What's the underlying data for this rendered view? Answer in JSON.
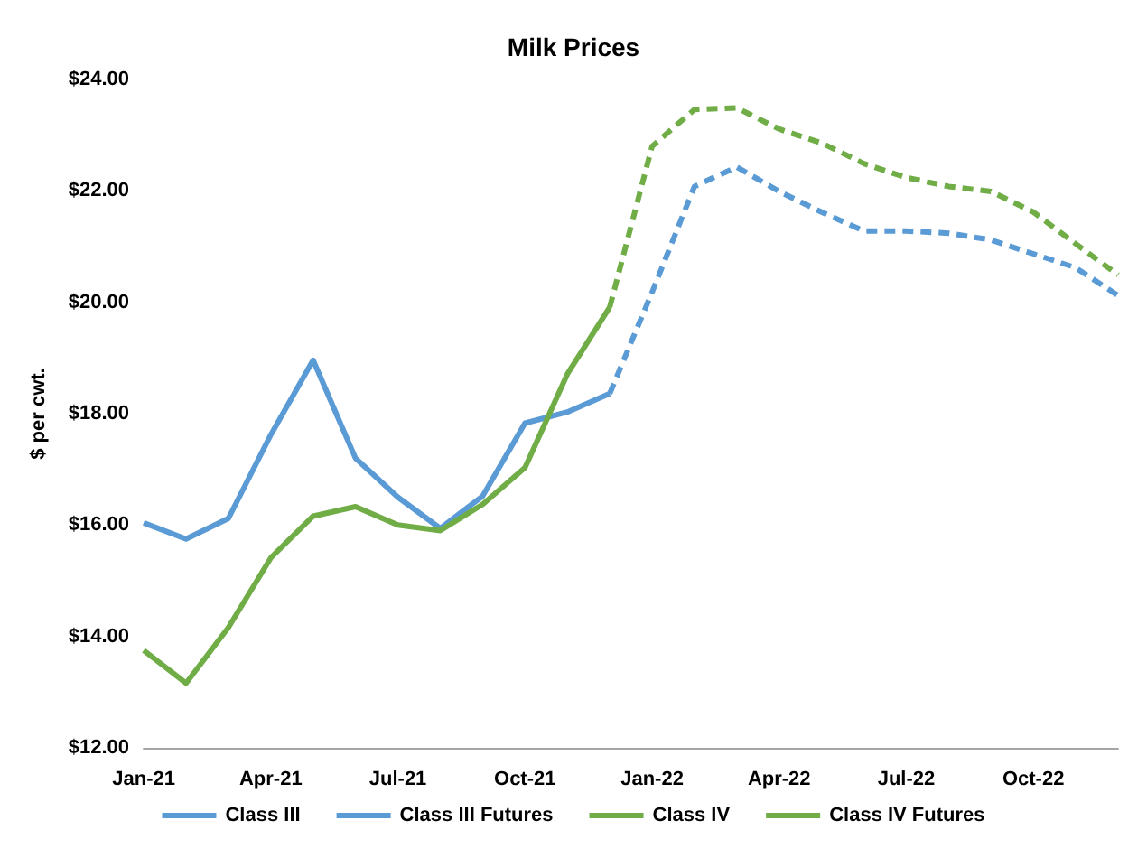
{
  "chart_data": {
    "type": "line",
    "title": "Milk Prices",
    "ylabel": "$ per cwt.",
    "categories": [
      "Jan-21",
      null,
      null,
      "Apr-21",
      null,
      null,
      "Jul-21",
      null,
      null,
      "Oct-21",
      null,
      null,
      "Jan-22",
      null,
      null,
      "Apr-22",
      null,
      null,
      "Jul-22",
      null,
      null,
      "Oct-22",
      null,
      null
    ],
    "series": [
      {
        "name": "Class III",
        "color": "#5b9bd5",
        "line_style": "solid",
        "values": [
          16.04,
          15.75,
          16.12,
          17.62,
          18.96,
          17.2,
          16.5,
          15.94,
          16.52,
          17.83,
          18.03,
          18.36,
          null,
          null,
          null,
          null,
          null,
          null,
          null,
          null,
          null,
          null,
          null,
          null
        ]
      },
      {
        "name": "Class III Futures",
        "color": "#5b9bd5",
        "line_style": "dashed",
        "values": [
          null,
          null,
          null,
          null,
          null,
          null,
          null,
          null,
          null,
          null,
          null,
          18.36,
          20.18,
          22.08,
          22.43,
          21.99,
          21.62,
          21.28,
          21.28,
          21.24,
          21.12,
          20.87,
          20.62,
          20.12
        ]
      },
      {
        "name": "Class IV",
        "color": "#70ad47",
        "line_style": "solid",
        "values": [
          13.75,
          13.16,
          14.16,
          15.41,
          16.16,
          16.33,
          16.0,
          15.9,
          16.37,
          17.03,
          18.71,
          19.91,
          null,
          null,
          null,
          null,
          null,
          null,
          null,
          null,
          null,
          null,
          null,
          null
        ]
      },
      {
        "name": "Class IV Futures",
        "color": "#70ad47",
        "line_style": "dashed",
        "values": [
          null,
          null,
          null,
          null,
          null,
          null,
          null,
          null,
          null,
          null,
          null,
          19.91,
          22.8,
          23.46,
          23.49,
          23.11,
          22.86,
          22.49,
          22.24,
          22.08,
          21.99,
          21.62,
          21.05,
          20.49
        ]
      }
    ],
    "ylim": [
      12,
      24
    ],
    "yticks": [
      {
        "value": 12,
        "label": "$12.00"
      },
      {
        "value": 14,
        "label": "$14.00"
      },
      {
        "value": 16,
        "label": "$16.00"
      },
      {
        "value": 18,
        "label": "$18.00"
      },
      {
        "value": 20,
        "label": "$20.00"
      },
      {
        "value": 22,
        "label": "$22.00"
      },
      {
        "value": 24,
        "label": "$24.00"
      }
    ],
    "grid": false,
    "legend": "bottom",
    "marker": "none"
  }
}
